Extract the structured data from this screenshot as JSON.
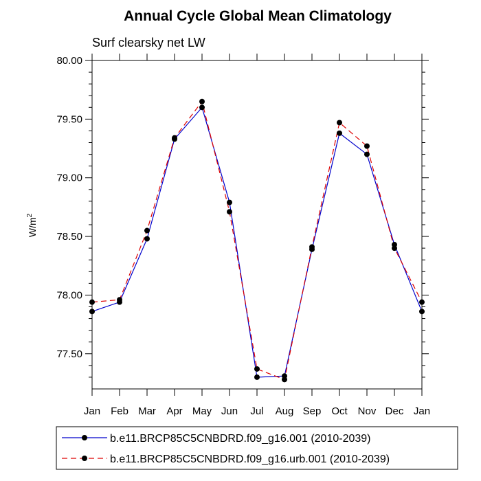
{
  "chart_data": {
    "type": "line",
    "title": "Annual Cycle Global Mean Climatology",
    "subtitle": "Surf clearsky net LW",
    "xlabel": "",
    "ylabel": "W/m",
    "ylabel_superscript": "2",
    "categories": [
      "Jan",
      "Feb",
      "Mar",
      "Apr",
      "May",
      "Jun",
      "Jul",
      "Aug",
      "Sep",
      "Oct",
      "Nov",
      "Dec",
      "Jan"
    ],
    "ylim": [
      77.2,
      80.0
    ],
    "yticks": [
      77.5,
      78.0,
      78.5,
      79.0,
      79.5,
      80.0
    ],
    "ytick_labels": [
      "77.50",
      "78.00",
      "78.50",
      "79.00",
      "79.50",
      "80.00"
    ],
    "legend_position": "bottom",
    "series": [
      {
        "name": "b.e11.BRCP85C5CNBDRD.f09_g16.001 (2010-2039)",
        "color": "#0000cc",
        "line_style": "solid",
        "values": [
          77.86,
          77.94,
          78.48,
          79.33,
          79.6,
          78.79,
          77.3,
          77.31,
          78.39,
          79.38,
          79.2,
          78.43,
          77.86
        ]
      },
      {
        "name": "b.e11.BRCP85C5CNBDRD.f09_g16.urb.001 (2010-2039)",
        "color": "#dd0000",
        "line_style": "dashed",
        "values": [
          77.94,
          77.96,
          78.55,
          79.34,
          79.65,
          78.71,
          77.37,
          77.28,
          78.41,
          79.47,
          79.27,
          78.4,
          77.94
        ]
      }
    ]
  }
}
